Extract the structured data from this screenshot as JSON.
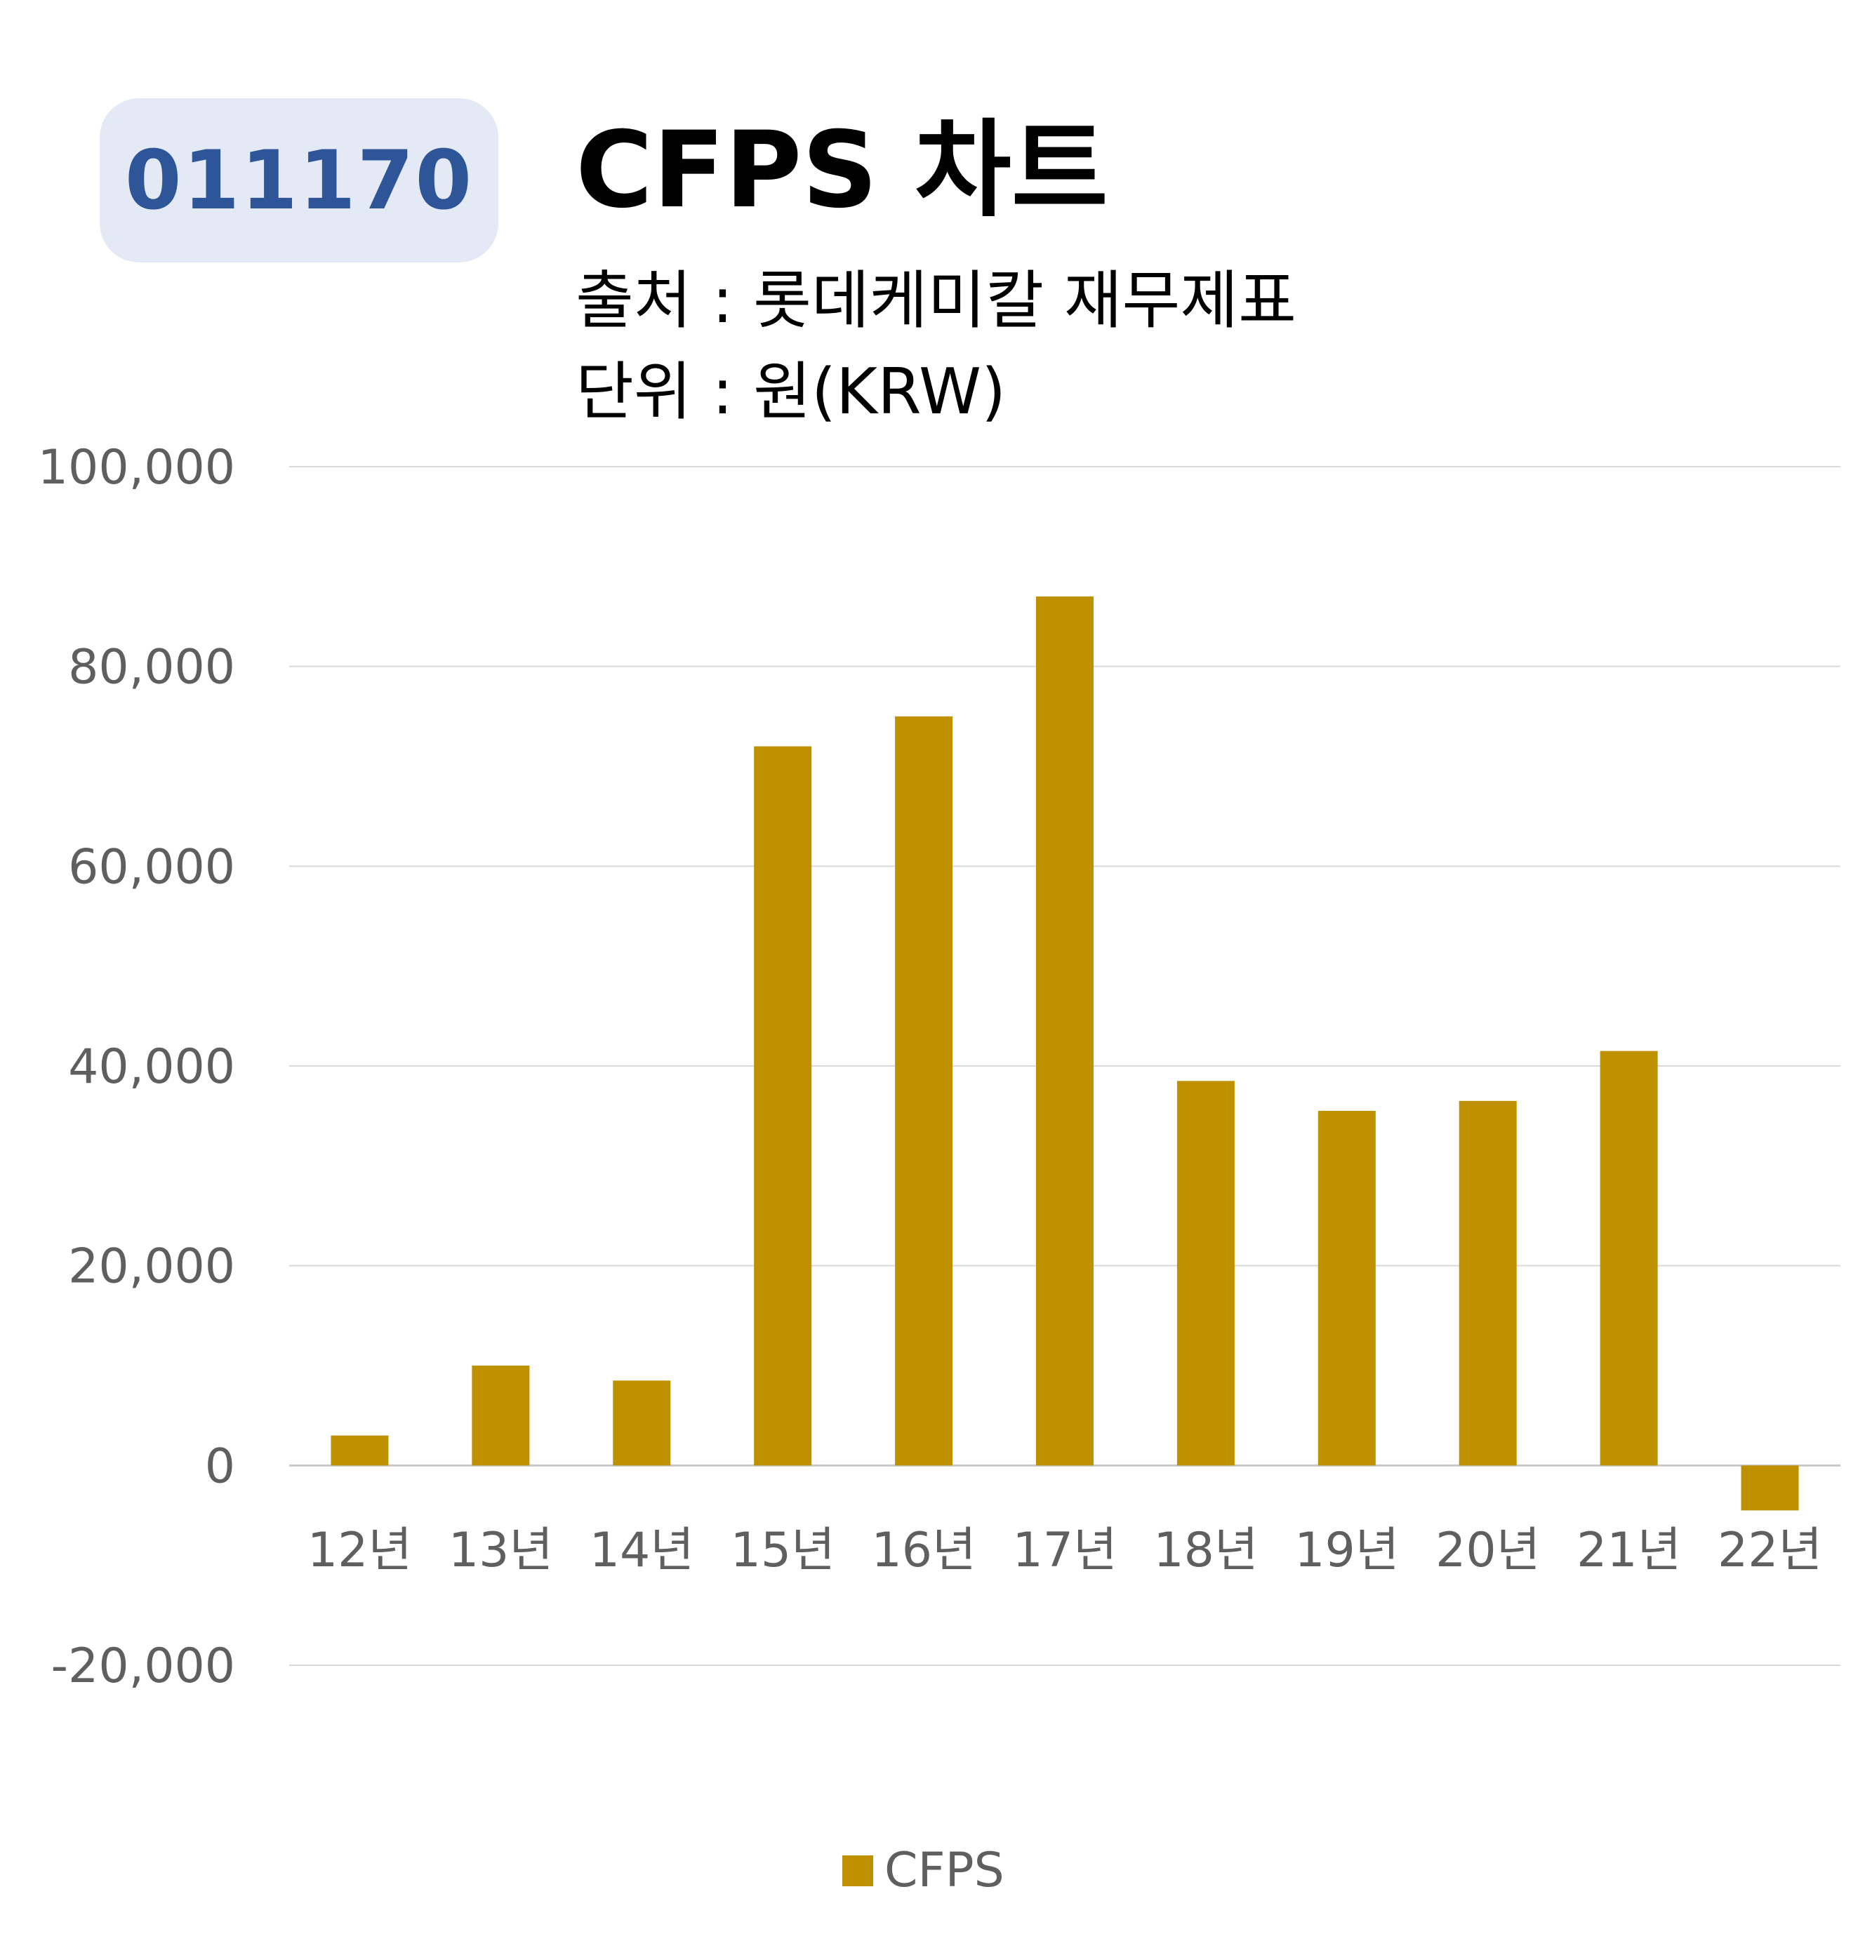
{
  "header": {
    "ticker": "011170",
    "title": "CFPS 차트",
    "source": "출처 : 롯데케미칼 재무제표",
    "unit": "단위 : 원(KRW)"
  },
  "colors": {
    "bar": "#bf9000",
    "badge_bg": "#e3e9f5",
    "badge_text": "#2e5597",
    "grid": "#d9d9d9",
    "tick_text": "#5f5f5f"
  },
  "chart_data": {
    "type": "bar",
    "categories": [
      "12년",
      "13년",
      "14년",
      "15년",
      "16년",
      "17년",
      "18년",
      "19년",
      "20년",
      "21년",
      "22년"
    ],
    "series": [
      {
        "name": "CFPS",
        "values": [
          3000,
          10000,
          8500,
          72000,
          75000,
          87000,
          38500,
          35500,
          36500,
          41500,
          -4500
        ]
      }
    ],
    "y_ticks": [
      "100,000",
      "80,000",
      "60,000",
      "40,000",
      "20,000",
      "0",
      "-20,000"
    ],
    "y_tick_values": [
      100000,
      80000,
      60000,
      40000,
      20000,
      0,
      -20000
    ],
    "ylim": [
      -20000,
      100000
    ],
    "grid": true,
    "legend": "bottom-center"
  }
}
